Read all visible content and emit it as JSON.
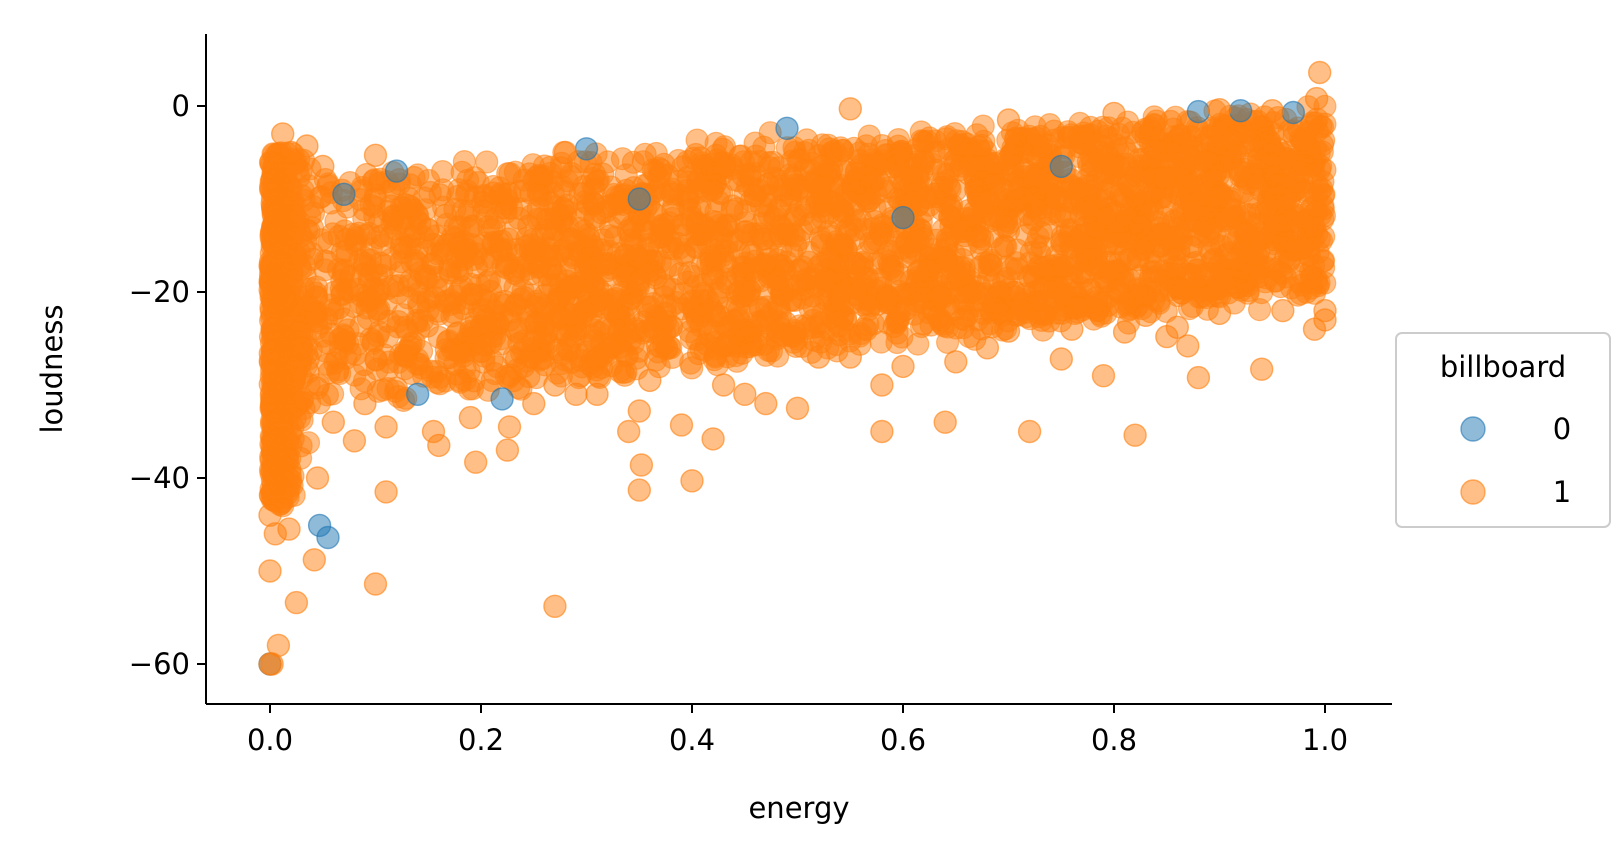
{
  "chart_data": {
    "type": "scatter",
    "title": "",
    "xlabel": "energy",
    "ylabel": "loudness",
    "xlim": [
      -0.06,
      1.06
    ],
    "ylim": [
      -64,
      8
    ],
    "x_ticks": [
      0.0,
      0.2,
      0.4,
      0.6,
      0.8,
      1.0
    ],
    "x_tick_labels": [
      "0.0",
      "0.2",
      "0.4",
      "0.6",
      "0.8",
      "1.0"
    ],
    "y_ticks": [
      0,
      -20,
      -40,
      -60
    ],
    "y_tick_labels": [
      "0",
      "−20",
      "−40",
      "−60"
    ],
    "grid": false,
    "legend": {
      "title": "billboard",
      "placement": "center-right-outside",
      "entries": [
        "0",
        "1"
      ]
    },
    "colors": {
      "0": "#1f77b4",
      "1": "#ff7f0e"
    },
    "point_alpha": 0.5,
    "series": [
      {
        "name": "0",
        "points": [
          [
            0.047,
            -45.1
          ],
          [
            0.055,
            -46.4
          ],
          [
            0.0,
            -60.0
          ],
          [
            0.3,
            -4.6
          ],
          [
            0.49,
            -2.4
          ],
          [
            0.88,
            -0.6
          ],
          [
            0.92,
            -0.5
          ],
          [
            0.07,
            -9.5
          ],
          [
            0.14,
            -31.0
          ],
          [
            0.22,
            -31.5
          ],
          [
            0.6,
            -12.0
          ],
          [
            0.75,
            -6.5
          ],
          [
            0.35,
            -10.0
          ],
          [
            0.12,
            -7.0
          ],
          [
            0.97,
            -0.7
          ]
        ]
      },
      {
        "name": "1",
        "points": [
          [
            0.995,
            3.6
          ],
          [
            0.012,
            -3.0
          ],
          [
            0.02,
            -5.0
          ],
          [
            0.035,
            -4.3
          ],
          [
            0.05,
            -6.5
          ],
          [
            0.1,
            -5.3
          ],
          [
            0.28,
            -5.0
          ],
          [
            0.55,
            -0.3
          ],
          [
            0.7,
            -1.5
          ],
          [
            0.8,
            -0.8
          ],
          [
            0.9,
            -0.4
          ],
          [
            0.95,
            -0.5
          ],
          [
            0.992,
            0.8
          ],
          [
            0.015,
            -21.0
          ],
          [
            0.03,
            -26.0
          ],
          [
            0.06,
            -34.0
          ],
          [
            0.09,
            -32.0
          ],
          [
            0.11,
            -34.5
          ],
          [
            0.155,
            -35.0
          ],
          [
            0.16,
            -36.5
          ],
          [
            0.19,
            -33.5
          ],
          [
            0.195,
            -38.3
          ],
          [
            0.225,
            -37.0
          ],
          [
            0.227,
            -34.5
          ],
          [
            0.25,
            -32.0
          ],
          [
            0.29,
            -31.0
          ],
          [
            0.31,
            -31.0
          ],
          [
            0.34,
            -35.0
          ],
          [
            0.35,
            -32.8
          ],
          [
            0.352,
            -38.6
          ],
          [
            0.35,
            -41.3
          ],
          [
            0.39,
            -34.3
          ],
          [
            0.4,
            -40.3
          ],
          [
            0.42,
            -35.8
          ],
          [
            0.45,
            -31.0
          ],
          [
            0.47,
            -32.0
          ],
          [
            0.5,
            -32.5
          ],
          [
            0.58,
            -35.0
          ],
          [
            0.58,
            -30.0
          ],
          [
            0.64,
            -34.0
          ],
          [
            0.72,
            -35.0
          ],
          [
            0.75,
            -27.2
          ],
          [
            0.79,
            -29.0
          ],
          [
            0.82,
            -35.4
          ],
          [
            0.85,
            -24.8
          ],
          [
            0.87,
            -25.8
          ],
          [
            0.88,
            -29.2
          ],
          [
            0.94,
            -28.3
          ],
          [
            0.99,
            -24.0
          ],
          [
            1.0,
            -22.0
          ],
          [
            0.11,
            -41.5
          ],
          [
            0.1,
            -51.4
          ],
          [
            0.042,
            -48.8
          ],
          [
            0.025,
            -53.4
          ],
          [
            0.27,
            -53.8
          ],
          [
            0.008,
            -58.0
          ],
          [
            0.0,
            -60.0
          ],
          [
            0.002,
            -60.0
          ],
          [
            0.0,
            -50.0
          ],
          [
            0.005,
            -46.0
          ],
          [
            0.0,
            -44.0
          ],
          [
            0.018,
            -45.5
          ],
          [
            0.045,
            -40.0
          ],
          [
            0.08,
            -36.0
          ],
          [
            0.65,
            -27.5
          ],
          [
            0.68,
            -26.0
          ],
          [
            0.7,
            -24.2
          ],
          [
            0.76,
            -24.0
          ],
          [
            0.81,
            -24.3
          ],
          [
            0.83,
            -22.5
          ],
          [
            0.86,
            -23.8
          ],
          [
            0.9,
            -22.3
          ],
          [
            0.96,
            -22.0
          ],
          [
            1.0,
            -23.0
          ],
          [
            0.6,
            -28.0
          ],
          [
            0.55,
            -27.0
          ],
          [
            0.52,
            -27.0
          ],
          [
            0.43,
            -30.0
          ],
          [
            0.36,
            -29.5
          ],
          [
            0.27,
            -30.0
          ]
        ]
      }
    ]
  }
}
